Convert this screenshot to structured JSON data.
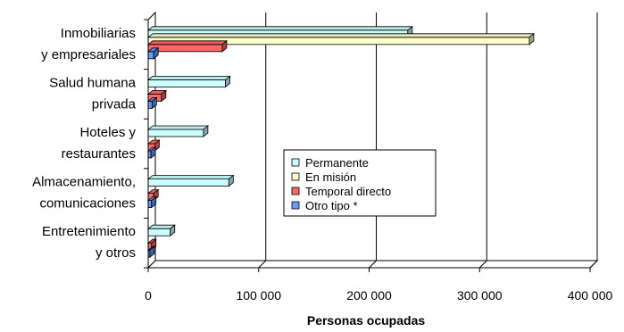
{
  "chart_data": {
    "type": "bar",
    "orientation": "horizontal",
    "style": "3d-clustered",
    "categories": [
      [
        "Inmobiliarias",
        "y empresariales"
      ],
      [
        "Salud humana",
        "privada"
      ],
      [
        "Hoteles y",
        "restaurantes"
      ],
      [
        "Almacenamiento,",
        "comunicaciones"
      ],
      [
        "Entretenimiento",
        "y otros"
      ]
    ],
    "series": [
      {
        "name": "Permanente",
        "color": "#CCFFFF",
        "values": [
          235000,
          70000,
          50000,
          73000,
          20000
        ]
      },
      {
        "name": "En misión",
        "color": "#FFFFCC",
        "values": [
          345000,
          0,
          0,
          0,
          0
        ]
      },
      {
        "name": "Temporal directo",
        "color": "#FF6666",
        "values": [
          67000,
          12000,
          6000,
          5000,
          3000
        ]
      },
      {
        "name": "Otro tipo *",
        "color": "#6699FF",
        "values": [
          5000,
          3500,
          2500,
          3000,
          1500
        ]
      }
    ],
    "xlabel": "Personas ocupadas",
    "ylabel": "",
    "xlim": [
      0,
      400000
    ],
    "xticks": [
      0,
      100000,
      200000,
      300000,
      400000
    ],
    "xtick_labels": [
      "0",
      "100 000",
      "200 000",
      "300 000",
      "400 000"
    ],
    "grid": "vertical",
    "legend_position": "inside-center-right"
  }
}
